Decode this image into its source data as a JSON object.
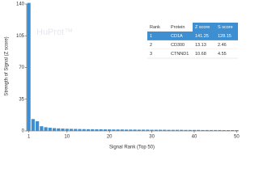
{
  "chart_data": {
    "type": "bar",
    "watermark": "HuProt™",
    "xlabel": "Signal Rank (Top 50)",
    "ylabel": "Strength of Signal (Z score)",
    "color": "#3d8fd1",
    "x": [
      1,
      2,
      3,
      4,
      5,
      6,
      7,
      8,
      9,
      10,
      11,
      12,
      13,
      14,
      15,
      16,
      17,
      18,
      19,
      20,
      21,
      22,
      23,
      24,
      25,
      26,
      27,
      28,
      29,
      30,
      31,
      32,
      33,
      34,
      35,
      36,
      37,
      38,
      39,
      40,
      41,
      42,
      43,
      44,
      45,
      46,
      47,
      48,
      49,
      50
    ],
    "values": [
      141.25,
      13.13,
      10.68,
      5.2,
      4.1,
      3.5,
      3.1,
      2.8,
      2.6,
      2.4,
      2.3,
      2.2,
      2.1,
      2.0,
      1.9,
      1.9,
      1.8,
      1.8,
      1.7,
      1.7,
      1.6,
      1.6,
      1.6,
      1.5,
      1.5,
      1.5,
      1.4,
      1.4,
      1.4,
      1.3,
      1.3,
      1.3,
      1.3,
      1.2,
      1.2,
      1.2,
      1.2,
      1.1,
      1.1,
      1.1,
      1.1,
      1.0,
      1.0,
      1.0,
      1.0,
      1.0,
      0.9,
      0.9,
      0.9,
      0.9
    ],
    "xlim": [
      0.5,
      50.5
    ],
    "xticks": [
      1,
      10,
      20,
      30,
      40,
      50
    ],
    "ylim": [
      0,
      140
    ],
    "yticks": [
      0,
      35,
      70,
      105,
      140
    ],
    "table": {
      "columns": [
        "Rank",
        "Protein",
        "Z score",
        "S score"
      ],
      "rows": [
        [
          1,
          "CD1A",
          141.25,
          128.15
        ],
        [
          2,
          "CD300",
          13.13,
          2.46
        ],
        [
          3,
          "CTNND1",
          10.68,
          4.55
        ]
      ]
    }
  }
}
